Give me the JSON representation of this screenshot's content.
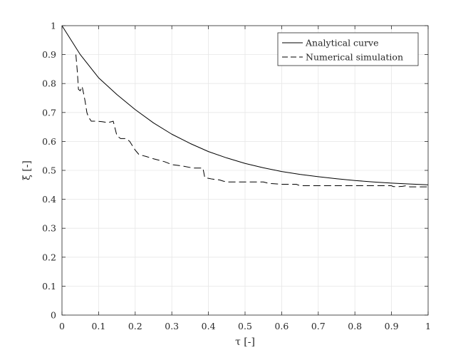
{
  "chart_data": {
    "type": "line",
    "xlabel": "τ [-]",
    "ylabel": "ξ [-]",
    "xlim": [
      0,
      1
    ],
    "ylim": [
      0,
      1
    ],
    "x_ticks": [
      0,
      0.1,
      0.2,
      0.3,
      0.4,
      0.5,
      0.6,
      0.7,
      0.8,
      0.9,
      1
    ],
    "y_ticks": [
      0,
      0.1,
      0.2,
      0.3,
      0.4,
      0.5,
      0.6,
      0.7,
      0.8,
      0.9,
      1
    ],
    "x_tick_labels": [
      "0",
      "0.1",
      "0.2",
      "0.3",
      "0.4",
      "0.5",
      "0.6",
      "0.7",
      "0.8",
      "0.9",
      "1"
    ],
    "y_tick_labels": [
      "0",
      "0.1",
      "0.2",
      "0.3",
      "0.4",
      "0.5",
      "0.6",
      "0.7",
      "0.8",
      "0.9",
      "1"
    ],
    "grid": true,
    "legend_position": "top-right",
    "series": [
      {
        "name": "Analytical curve",
        "style": "solid",
        "color": "#000000",
        "x": [
          0,
          0.05,
          0.1,
          0.15,
          0.2,
          0.25,
          0.3,
          0.35,
          0.4,
          0.45,
          0.5,
          0.55,
          0.6,
          0.65,
          0.7,
          0.75,
          0.8,
          0.85,
          0.9,
          0.95,
          1.0
        ],
        "y": [
          1.0,
          0.9,
          0.82,
          0.762,
          0.71,
          0.664,
          0.625,
          0.593,
          0.565,
          0.543,
          0.524,
          0.509,
          0.496,
          0.486,
          0.478,
          0.471,
          0.465,
          0.46,
          0.456,
          0.453,
          0.45
        ]
      },
      {
        "name": "Numerical simulation",
        "style": "dashed",
        "color": "#000000",
        "x": [
          0.038,
          0.042,
          0.045,
          0.05,
          0.055,
          0.06,
          0.063,
          0.068,
          0.072,
          0.08,
          0.095,
          0.11,
          0.125,
          0.135,
          0.14,
          0.145,
          0.15,
          0.16,
          0.175,
          0.185,
          0.19,
          0.2,
          0.21,
          0.215,
          0.23,
          0.25,
          0.265,
          0.28,
          0.3,
          0.33,
          0.35,
          0.36,
          0.385,
          0.39,
          0.41,
          0.43,
          0.44,
          0.45,
          0.5,
          0.55,
          0.565,
          0.6,
          0.64,
          0.65,
          0.7,
          0.8,
          0.9,
          0.905,
          0.92,
          0.93,
          0.94,
          0.95,
          1.0
        ],
        "y": [
          0.9,
          0.84,
          0.78,
          0.775,
          0.79,
          0.76,
          0.74,
          0.7,
          0.685,
          0.67,
          0.67,
          0.668,
          0.665,
          0.668,
          0.67,
          0.645,
          0.62,
          0.61,
          0.61,
          0.6,
          0.59,
          0.57,
          0.555,
          0.553,
          0.548,
          0.54,
          0.535,
          0.53,
          0.52,
          0.515,
          0.51,
          0.508,
          0.508,
          0.475,
          0.47,
          0.467,
          0.463,
          0.46,
          0.46,
          0.46,
          0.455,
          0.452,
          0.452,
          0.447,
          0.447,
          0.447,
          0.447,
          0.444,
          0.444,
          0.445,
          0.447,
          0.443,
          0.443
        ]
      }
    ]
  }
}
